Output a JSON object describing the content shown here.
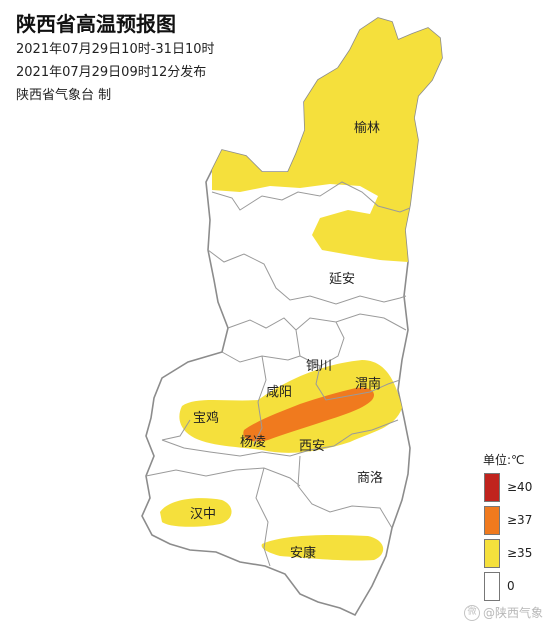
{
  "header": {
    "title": "陕西省高温预报图",
    "period": "2021年07月29日10时-31日10时",
    "issued": "2021年07月29日09时12分发布",
    "producer": "陕西省气象台  制"
  },
  "cities": {
    "yulin": "榆林",
    "yanan": "延安",
    "tongchuan": "铜川",
    "xianyang": "咸阳",
    "weinan": "渭南",
    "baoji": "宝鸡",
    "yangling": "杨凌",
    "xian": "西安",
    "shangluo": "商洛",
    "hanzhong": "汉中",
    "ankang": "安康"
  },
  "legend": {
    "title": "单位:℃",
    "items": [
      {
        "label": "≥40",
        "color": "#c0231d"
      },
      {
        "label": "≥37",
        "color": "#f07a1e"
      },
      {
        "label": "≥35",
        "color": "#f5e03c"
      },
      {
        "label": "0",
        "color": "#ffffff"
      }
    ]
  },
  "watermark": {
    "icon": "weibo-icon",
    "text": "@陕西气象"
  },
  "colors": {
    "hot35": "#f5e03c",
    "hot37": "#f07a1e",
    "hot40": "#c0231d",
    "border": "#9a9a9a"
  }
}
